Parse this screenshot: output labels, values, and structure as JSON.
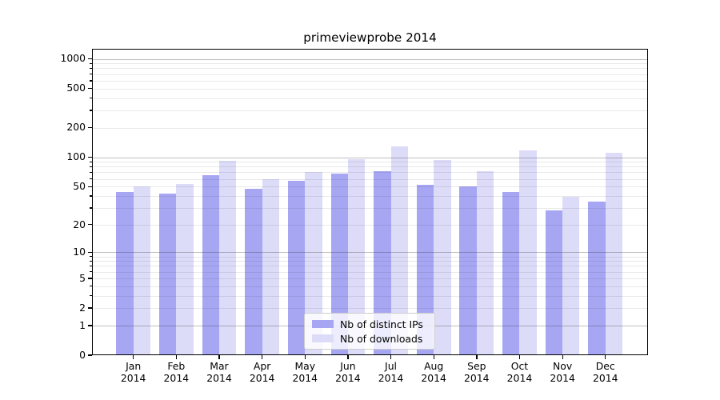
{
  "figure": {
    "background": "#ffffff"
  },
  "chart_data": {
    "type": "bar",
    "title": "primeviewprobe 2014",
    "categories": [
      "Jan 2014",
      "Feb 2014",
      "Mar 2014",
      "Apr 2014",
      "May 2014",
      "Jun 2014",
      "Jul 2014",
      "Aug 2014",
      "Sep 2014",
      "Oct 2014",
      "Nov 2014",
      "Dec 2014"
    ],
    "x_tick_lines": [
      {
        "month": "Jan",
        "year": "2014"
      },
      {
        "month": "Feb",
        "year": "2014"
      },
      {
        "month": "Mar",
        "year": "2014"
      },
      {
        "month": "Apr",
        "year": "2014"
      },
      {
        "month": "May",
        "year": "2014"
      },
      {
        "month": "Jun",
        "year": "2014"
      },
      {
        "month": "Jul",
        "year": "2014"
      },
      {
        "month": "Aug",
        "year": "2014"
      },
      {
        "month": "Sep",
        "year": "2014"
      },
      {
        "month": "Oct",
        "year": "2014"
      },
      {
        "month": "Nov",
        "year": "2014"
      },
      {
        "month": "Dec",
        "year": "2014"
      }
    ],
    "series": [
      {
        "name": "Nb of distinct IPs",
        "color": "#a6a6f3",
        "values": [
          44,
          42,
          65,
          47,
          57,
          68,
          72,
          52,
          50,
          44,
          28,
          35
        ]
      },
      {
        "name": "Nb of downloads",
        "color": "#dcdcf8",
        "values": [
          50,
          53,
          92,
          60,
          71,
          95,
          128,
          94,
          72,
          118,
          39,
          112
        ]
      }
    ],
    "yscale": "log(1+v)",
    "ylim": [
      0,
      1300
    ],
    "yticks": [
      0,
      1,
      2,
      5,
      10,
      20,
      50,
      100,
      200,
      500,
      1000
    ],
    "grid": {
      "major_at": [
        1,
        10,
        100,
        1000
      ],
      "minor": "2-9 per decade",
      "grid_on": true
    },
    "legend": {
      "position": "lower center",
      "entries": [
        "Nb of distinct IPs",
        "Nb of downloads"
      ]
    },
    "xlabel": "",
    "ylabel": ""
  }
}
